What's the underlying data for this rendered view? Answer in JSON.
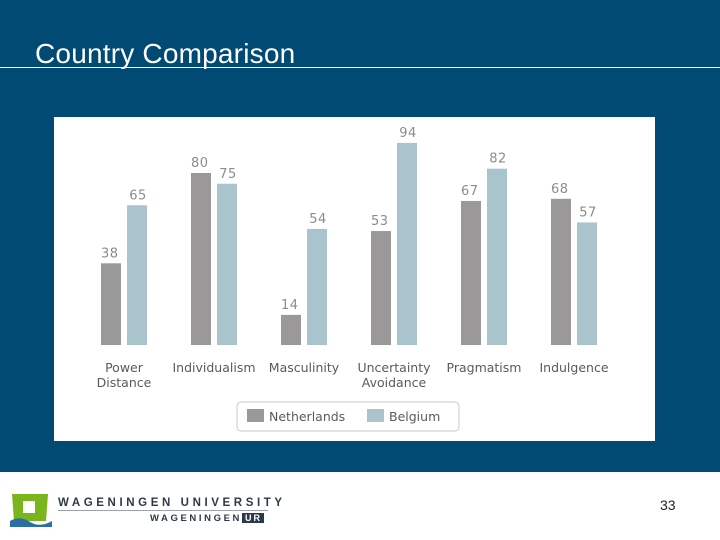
{
  "slide": {
    "title": "Country Comparison",
    "page_number": "33"
  },
  "footer": {
    "university_name": "WAGENINGEN UNIVERSITY",
    "ur_prefix": "WAGENINGEN",
    "ur_box": "UR"
  },
  "colors": {
    "background_panel": "#004a74",
    "netherlands": "#9b9899",
    "belgium": "#a9c4cc",
    "value_label": "#8c8c8c",
    "category_label": "#5a5a5a",
    "logo_green": "#7ab51d",
    "logo_blue": "#2b6ea0"
  },
  "chart_data": {
    "type": "bar",
    "categories": [
      "Power Distance",
      "Individualism",
      "Masculinity",
      "Uncertainty Avoidance",
      "Pragmatism",
      "Indulgence"
    ],
    "category_lines": [
      [
        "Power",
        "Distance"
      ],
      [
        "Individualism"
      ],
      [
        "Masculinity"
      ],
      [
        "Uncertainty",
        "Avoidance"
      ],
      [
        "Pragmatism"
      ],
      [
        "Indulgence"
      ]
    ],
    "series": [
      {
        "name": "Netherlands",
        "values": [
          38,
          80,
          14,
          53,
          67,
          68
        ]
      },
      {
        "name": "Belgium",
        "values": [
          65,
          75,
          54,
          94,
          82,
          57
        ]
      }
    ],
    "ylim": [
      0,
      100
    ],
    "title": "",
    "xlabel": "",
    "ylabel": "",
    "grid": false,
    "legend": "bottom-center"
  }
}
